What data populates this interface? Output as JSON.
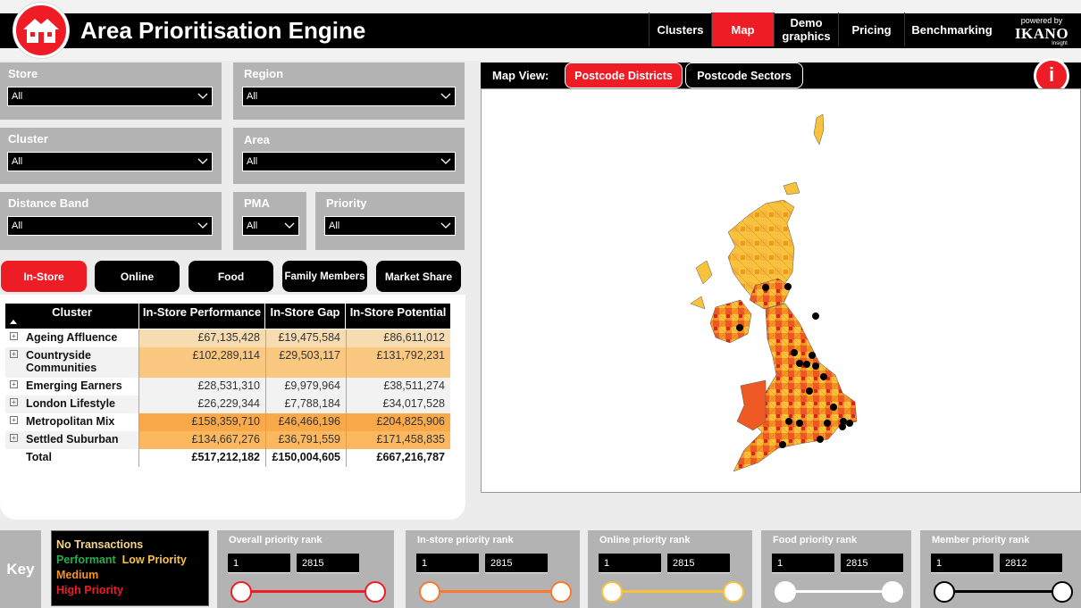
{
  "app": {
    "title": "Area Prioritisation Engine",
    "powered_by": "powered by",
    "brand": "IKANO",
    "brand_sub": "Insight"
  },
  "nav": [
    {
      "label": "Clusters"
    },
    {
      "label": "Map",
      "active": true
    },
    {
      "label": "Demo\ngraphics"
    },
    {
      "label": "Pricing"
    },
    {
      "label": "Benchmarking"
    }
  ],
  "filters": {
    "store": {
      "label": "Store",
      "value": "All"
    },
    "region": {
      "label": "Region",
      "value": "All"
    },
    "cluster": {
      "label": "Cluster",
      "value": "All"
    },
    "area": {
      "label": "Area",
      "value": "All"
    },
    "distance_band": {
      "label": "Distance Band",
      "value": "All"
    },
    "pma": {
      "label": "PMA",
      "value": "All"
    },
    "priority": {
      "label": "Priority",
      "value": "All"
    }
  },
  "tabs": [
    {
      "label": "In-Store",
      "active": true
    },
    {
      "label": "Online"
    },
    {
      "label": "Food"
    },
    {
      "label": "Family Members"
    },
    {
      "label": "Market Share"
    }
  ],
  "table": {
    "columns": [
      "Cluster",
      "In-Store Performance",
      "In-Store Gap",
      "In-Store Potential"
    ],
    "rows": [
      {
        "name": "Ageing Affluence",
        "performance": "£67,135,428",
        "gap": "£19,475,584",
        "potential": "£86,611,012",
        "shade": "#f7dcb2"
      },
      {
        "name": "Countryside Communities",
        "performance": "£102,289,114",
        "gap": "£29,503,117",
        "potential": "£131,792,231",
        "shade": "#fbc882"
      },
      {
        "name": "Emerging Earners",
        "performance": "£28,531,310",
        "gap": "£9,979,964",
        "potential": "£38,511,274",
        "shade": "#f2f2f2"
      },
      {
        "name": "London Lifestyle",
        "performance": "£26,229,344",
        "gap": "£7,788,184",
        "potential": "£34,017,528",
        "shade": "#f2f2f2"
      },
      {
        "name": "Metropolitan Mix",
        "performance": "£158,359,710",
        "gap": "£46,466,196",
        "potential": "£204,825,906",
        "shade": "#faa94a"
      },
      {
        "name": "Settled Suburban",
        "performance": "£134,667,276",
        "gap": "£36,791,559",
        "potential": "£171,458,835",
        "shade": "#fbb85e"
      }
    ],
    "total": {
      "name": "Total",
      "performance": "£517,212,182",
      "gap": "£150,004,605",
      "potential": "£667,216,787"
    }
  },
  "map": {
    "view_label": "Map View:",
    "tabs": [
      {
        "label": "Postcode Districts",
        "active": true
      },
      {
        "label": "Postcode Sectors"
      }
    ],
    "info_icon": "i"
  },
  "key": {
    "label": "Key",
    "legend": [
      {
        "label": "No Transactions",
        "color": "#f6d58a"
      },
      {
        "label": "Performant",
        "color": "#22b14c"
      },
      {
        "label": "Low Priority",
        "color": "#f9c23c"
      },
      {
        "label": "Medium",
        "color": "#f7941d"
      },
      {
        "label": "High Priority",
        "color": "#ee1c25"
      }
    ]
  },
  "ranks": [
    {
      "label": "Overall priority rank",
      "min": "1",
      "max": "2815",
      "color": "#ee1c25"
    },
    {
      "label": "In-store priority rank",
      "min": "1",
      "max": "2815",
      "color": "#f7792c"
    },
    {
      "label": "Online priority rank",
      "min": "1",
      "max": "2815",
      "color": "#f9c23c"
    },
    {
      "label": "Food priority rank",
      "min": "1",
      "max": "2815",
      "color": "#ffffff"
    },
    {
      "label": "Member priority rank",
      "min": "1",
      "max": "2812",
      "color": "#000000"
    }
  ]
}
